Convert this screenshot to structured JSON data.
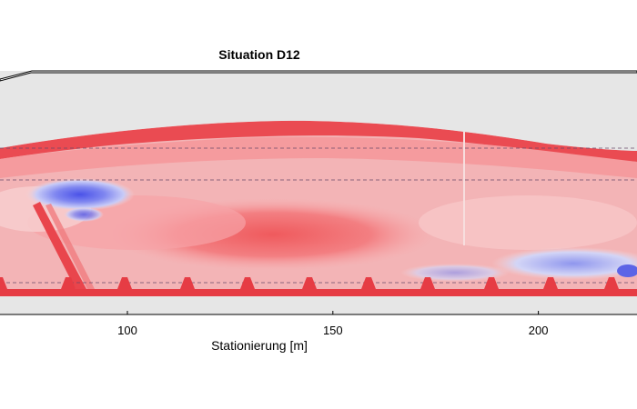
{
  "chart_data": {
    "type": "heatmap",
    "title": "Situation D12",
    "xlabel": "Stationierung [m]",
    "ylabel": "",
    "x_visible_range": [
      69,
      224
    ],
    "x_ticks": [
      100,
      150,
      200
    ],
    "x_tick_labels": [
      "100",
      "150",
      "200"
    ],
    "colormap": "diverging blue-white-red",
    "colorbar_shown": false,
    "grid": false
  }
}
